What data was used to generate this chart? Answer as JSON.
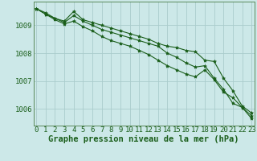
{
  "title": "Graphe pression niveau de la mer (hPa)",
  "background_color": "#cce8e8",
  "grid_color": "#aacccc",
  "line_color": "#1a5e1a",
  "hours": [
    0,
    1,
    2,
    3,
    4,
    5,
    6,
    7,
    8,
    9,
    10,
    11,
    12,
    13,
    14,
    15,
    16,
    17,
    18,
    19,
    20,
    21,
    22,
    23
  ],
  "series1": [
    1009.6,
    1009.4,
    1009.25,
    1009.15,
    1009.5,
    1009.2,
    1009.1,
    1009.0,
    1008.9,
    1008.8,
    1008.7,
    1008.6,
    1008.5,
    1008.35,
    1008.25,
    1008.2,
    1008.1,
    1008.05,
    1007.75,
    1007.7,
    1007.1,
    1006.65,
    1006.1,
    1005.85
  ],
  "series2": [
    1009.6,
    1009.45,
    1009.25,
    1009.1,
    1009.35,
    1009.15,
    1009.0,
    1008.85,
    1008.75,
    1008.65,
    1008.55,
    1008.45,
    1008.35,
    1008.25,
    1008.0,
    1007.85,
    1007.65,
    1007.5,
    1007.55,
    1007.1,
    1006.7,
    1006.2,
    1006.05,
    1005.75
  ],
  "series3": [
    1009.6,
    1009.4,
    1009.2,
    1009.05,
    1009.15,
    1008.95,
    1008.8,
    1008.6,
    1008.45,
    1008.35,
    1008.25,
    1008.1,
    1007.95,
    1007.75,
    1007.55,
    1007.4,
    1007.25,
    1007.15,
    1007.4,
    1007.05,
    1006.6,
    1006.4,
    1006.05,
    1005.65
  ],
  "ylim": [
    1005.4,
    1009.85
  ],
  "yticks": [
    1006,
    1007,
    1008,
    1009
  ],
  "tick_fontsize": 6.5,
  "label_fontsize": 7.5
}
